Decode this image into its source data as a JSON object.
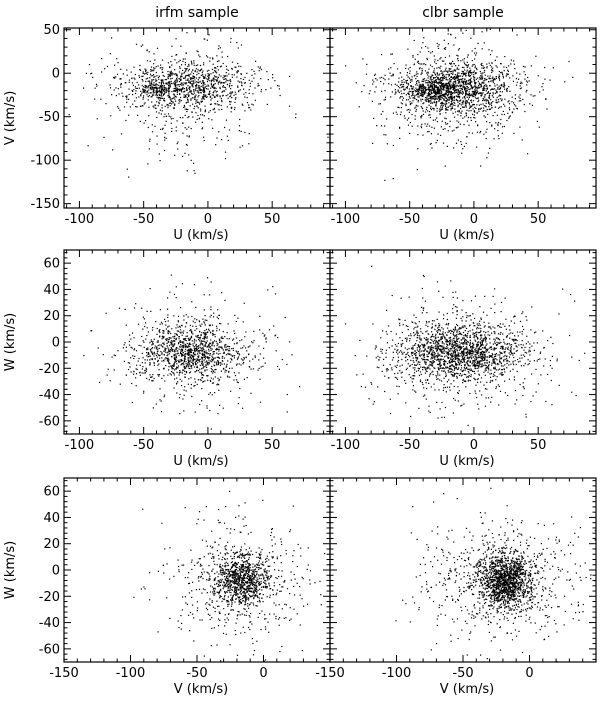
{
  "chart_data": [
    {
      "type": "scatter",
      "panel": "irfm-UV",
      "title": "irfm sample",
      "xlabel": "U (km/s)",
      "ylabel": "V (km/s)",
      "xlim": [
        -112,
        95
      ],
      "ylim": [
        -155,
        52
      ],
      "xticks": [
        "-100",
        "-50",
        "0",
        "50"
      ],
      "yticks": [
        "50",
        "0",
        "-50",
        "-100",
        "-150"
      ],
      "show_xtick_labels": true,
      "show_ytick_labels": true,
      "n_points": 1300,
      "clusters": [
        {
          "cx": -15,
          "cy": -12,
          "sx": 26,
          "sy": 14,
          "weight": 0.6
        },
        {
          "cx": -40,
          "cy": -18,
          "sx": 7,
          "sy": 5,
          "weight": 0.08
        },
        {
          "cx": -15,
          "cy": -25,
          "sx": 30,
          "sy": 35,
          "weight": 0.32
        }
      ]
    },
    {
      "type": "scatter",
      "panel": "clbr-UV",
      "title": "clbr sample",
      "xlabel": "U (km/s)",
      "ylabel": "",
      "xlim": [
        -112,
        95
      ],
      "ylim": [
        -155,
        52
      ],
      "xticks": [
        "-100",
        "-50",
        "0",
        "50"
      ],
      "yticks": [
        "50",
        "0",
        "-50",
        "-100",
        "-150"
      ],
      "show_xtick_labels": true,
      "show_ytick_labels": false,
      "n_points": 1900,
      "clusters": [
        {
          "cx": -15,
          "cy": -15,
          "sx": 25,
          "sy": 14,
          "weight": 0.62
        },
        {
          "cx": -30,
          "cy": -20,
          "sx": 10,
          "sy": 5,
          "weight": 0.1
        },
        {
          "cx": -15,
          "cy": -28,
          "sx": 32,
          "sy": 35,
          "weight": 0.28
        }
      ]
    },
    {
      "type": "scatter",
      "panel": "irfm-UW",
      "title": "",
      "xlabel": "U (km/s)",
      "ylabel": "W (km/s)",
      "xlim": [
        -112,
        95
      ],
      "ylim": [
        -70,
        70
      ],
      "xticks": [
        "-100",
        "-50",
        "0",
        "50"
      ],
      "yticks": [
        "60",
        "40",
        "20",
        "0",
        "-20",
        "-40",
        "-60"
      ],
      "show_xtick_labels": true,
      "show_ytick_labels": true,
      "n_points": 1300,
      "clusters": [
        {
          "cx": -15,
          "cy": -8,
          "sx": 22,
          "sy": 11,
          "weight": 0.7
        },
        {
          "cx": -15,
          "cy": -8,
          "sx": 35,
          "sy": 22,
          "weight": 0.3
        }
      ]
    },
    {
      "type": "scatter",
      "panel": "clbr-UW",
      "title": "",
      "xlabel": "U (km/s)",
      "ylabel": "",
      "xlim": [
        -112,
        95
      ],
      "ylim": [
        -70,
        70
      ],
      "xticks": [
        "-100",
        "-50",
        "0",
        "50"
      ],
      "yticks": [
        "60",
        "40",
        "20",
        "0",
        "-20",
        "-40",
        "-60"
      ],
      "show_xtick_labels": true,
      "show_ytick_labels": false,
      "n_points": 1900,
      "clusters": [
        {
          "cx": -12,
          "cy": -8,
          "sx": 24,
          "sy": 11,
          "weight": 0.72
        },
        {
          "cx": -12,
          "cy": -8,
          "sx": 36,
          "sy": 22,
          "weight": 0.28
        }
      ]
    },
    {
      "type": "scatter",
      "panel": "irfm-VW",
      "title": "",
      "xlabel": "V (km/s)",
      "ylabel": "W (km/s)",
      "xlim": [
        -150,
        50
      ],
      "ylim": [
        -70,
        70
      ],
      "xticks": [
        "-150",
        "-100",
        "-50",
        "0"
      ],
      "yticks": [
        "60",
        "40",
        "20",
        "0",
        "-20",
        "-40",
        "-60"
      ],
      "show_xtick_labels": true,
      "show_ytick_labels": true,
      "n_points": 1300,
      "clusters": [
        {
          "cx": -17,
          "cy": -7,
          "sx": 10,
          "sy": 10,
          "weight": 0.6
        },
        {
          "cx": -20,
          "cy": -8,
          "sx": 28,
          "sy": 22,
          "weight": 0.4
        }
      ]
    },
    {
      "type": "scatter",
      "panel": "clbr-VW",
      "title": "",
      "xlabel": "V (km/s)",
      "ylabel": "",
      "xlim": [
        -150,
        50
      ],
      "ylim": [
        -70,
        70
      ],
      "xticks": [
        "-150",
        "-100",
        "-50",
        "0"
      ],
      "yticks": [
        "60",
        "40",
        "20",
        "0",
        "-20",
        "-40",
        "-60"
      ],
      "show_xtick_labels": true,
      "show_ytick_labels": false,
      "n_points": 1900,
      "clusters": [
        {
          "cx": -18,
          "cy": -8,
          "sx": 10,
          "sy": 10,
          "weight": 0.62
        },
        {
          "cx": -22,
          "cy": -8,
          "sx": 30,
          "sy": 22,
          "weight": 0.38
        }
      ]
    }
  ]
}
